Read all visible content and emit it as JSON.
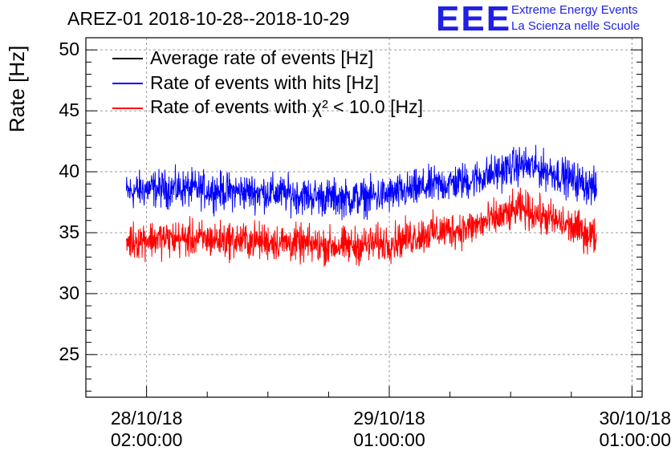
{
  "chart_data": {
    "type": "line",
    "title": "AREZ-01 2018-10-28--2018-10-29",
    "xlabel": "",
    "ylabel": "Rate [Hz]",
    "ylim": [
      21.5,
      51
    ],
    "yticks": [
      "25",
      "30",
      "35",
      "40",
      "45",
      "50"
    ],
    "xticks": [
      {
        "date": "28/10/18",
        "time": "02:00:00"
      },
      {
        "date": "29/10/18",
        "time": "01:00:00"
      },
      {
        "date": "30/10/18",
        "time": "01:00:00"
      }
    ],
    "x_units": "hours since 28/10/18 02:00:00",
    "xlim": [
      -6,
      49
    ],
    "grid": true,
    "legend_position": "top-left",
    "series": [
      {
        "name": "Average rate of events [Hz]",
        "color": "#000000",
        "x": [],
        "values": []
      },
      {
        "name": "Rate of events with hits [Hz]",
        "color": "#0000ff",
        "x": [
          -2,
          0,
          4,
          8,
          12,
          16,
          20,
          24,
          28,
          32,
          36,
          37,
          40,
          44,
          44.5
        ],
        "values": [
          38.3,
          38.6,
          38.6,
          38.4,
          38.3,
          38.0,
          37.8,
          38.1,
          38.8,
          39.3,
          40.3,
          40.6,
          40.0,
          38.8,
          38.5
        ]
      },
      {
        "name": "Rate of events with χ² < 10.0 [Hz]",
        "color": "#ff0000",
        "x": [
          -2,
          0,
          4,
          8,
          12,
          16,
          20,
          24,
          28,
          32,
          36,
          37,
          40,
          44,
          44.5
        ],
        "values": [
          34.3,
          34.5,
          34.5,
          34.4,
          34.3,
          34.0,
          33.9,
          34.2,
          35.0,
          35.4,
          36.6,
          37.0,
          36.1,
          34.8,
          34.6
        ]
      }
    ]
  },
  "logo": {
    "mark": "EEE",
    "line1": "Extreme Energy Events",
    "line2": "La Scienza nelle Scuole",
    "color": "#1f1fe6"
  }
}
